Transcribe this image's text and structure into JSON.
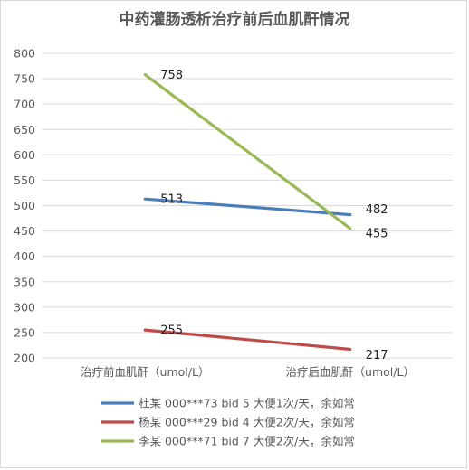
{
  "chart_data": {
    "type": "line",
    "title": "中药灌肠透析治疗前后血肌酐情况",
    "categories": [
      "治疗前血肌酐（umol/L）",
      "治疗后血肌酐（umol/L）"
    ],
    "ylim": [
      200,
      800
    ],
    "yticks": [
      200,
      250,
      300,
      350,
      400,
      450,
      500,
      550,
      600,
      650,
      700,
      750,
      800
    ],
    "grid": true,
    "legend_position": "bottom",
    "series": [
      {
        "name": "杜某 000***73 bid 5 大便1次/天，余如常",
        "values": [
          513,
          482
        ],
        "color": "#4a7ebb"
      },
      {
        "name": "杨某 000***29 bid 4 大便2次/天，余如常",
        "values": [
          255,
          217
        ],
        "color": "#be4b48"
      },
      {
        "name": "李某 000***71 bid 7 大便2次/天，余如常",
        "values": [
          758,
          455
        ],
        "color": "#98b954"
      }
    ]
  }
}
